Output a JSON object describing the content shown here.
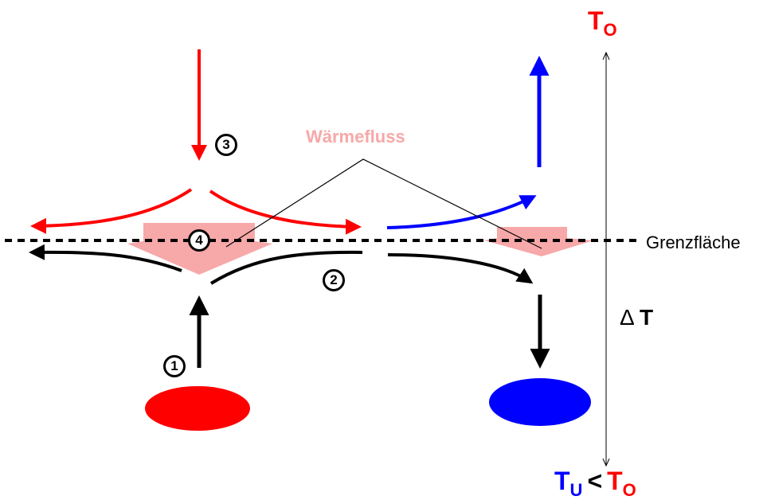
{
  "labels": {
    "t_top": "T",
    "t_top_sub": "O",
    "waermefluss": "Wärmefluss",
    "grenzflaeche": "Grenzfläche",
    "delta": "Δ",
    "delta_t": "T",
    "t_bottom_left": "T",
    "t_bottom_left_sub": "U",
    "less_than": "<",
    "t_bottom_right": "T",
    "t_bottom_right_sub": "O"
  },
  "steps": [
    "1",
    "2",
    "3",
    "4"
  ],
  "colors": {
    "warm": "#ff0000",
    "cold": "#0000ff",
    "heat_flow": "#f7a8a8",
    "neutral": "#000000"
  }
}
